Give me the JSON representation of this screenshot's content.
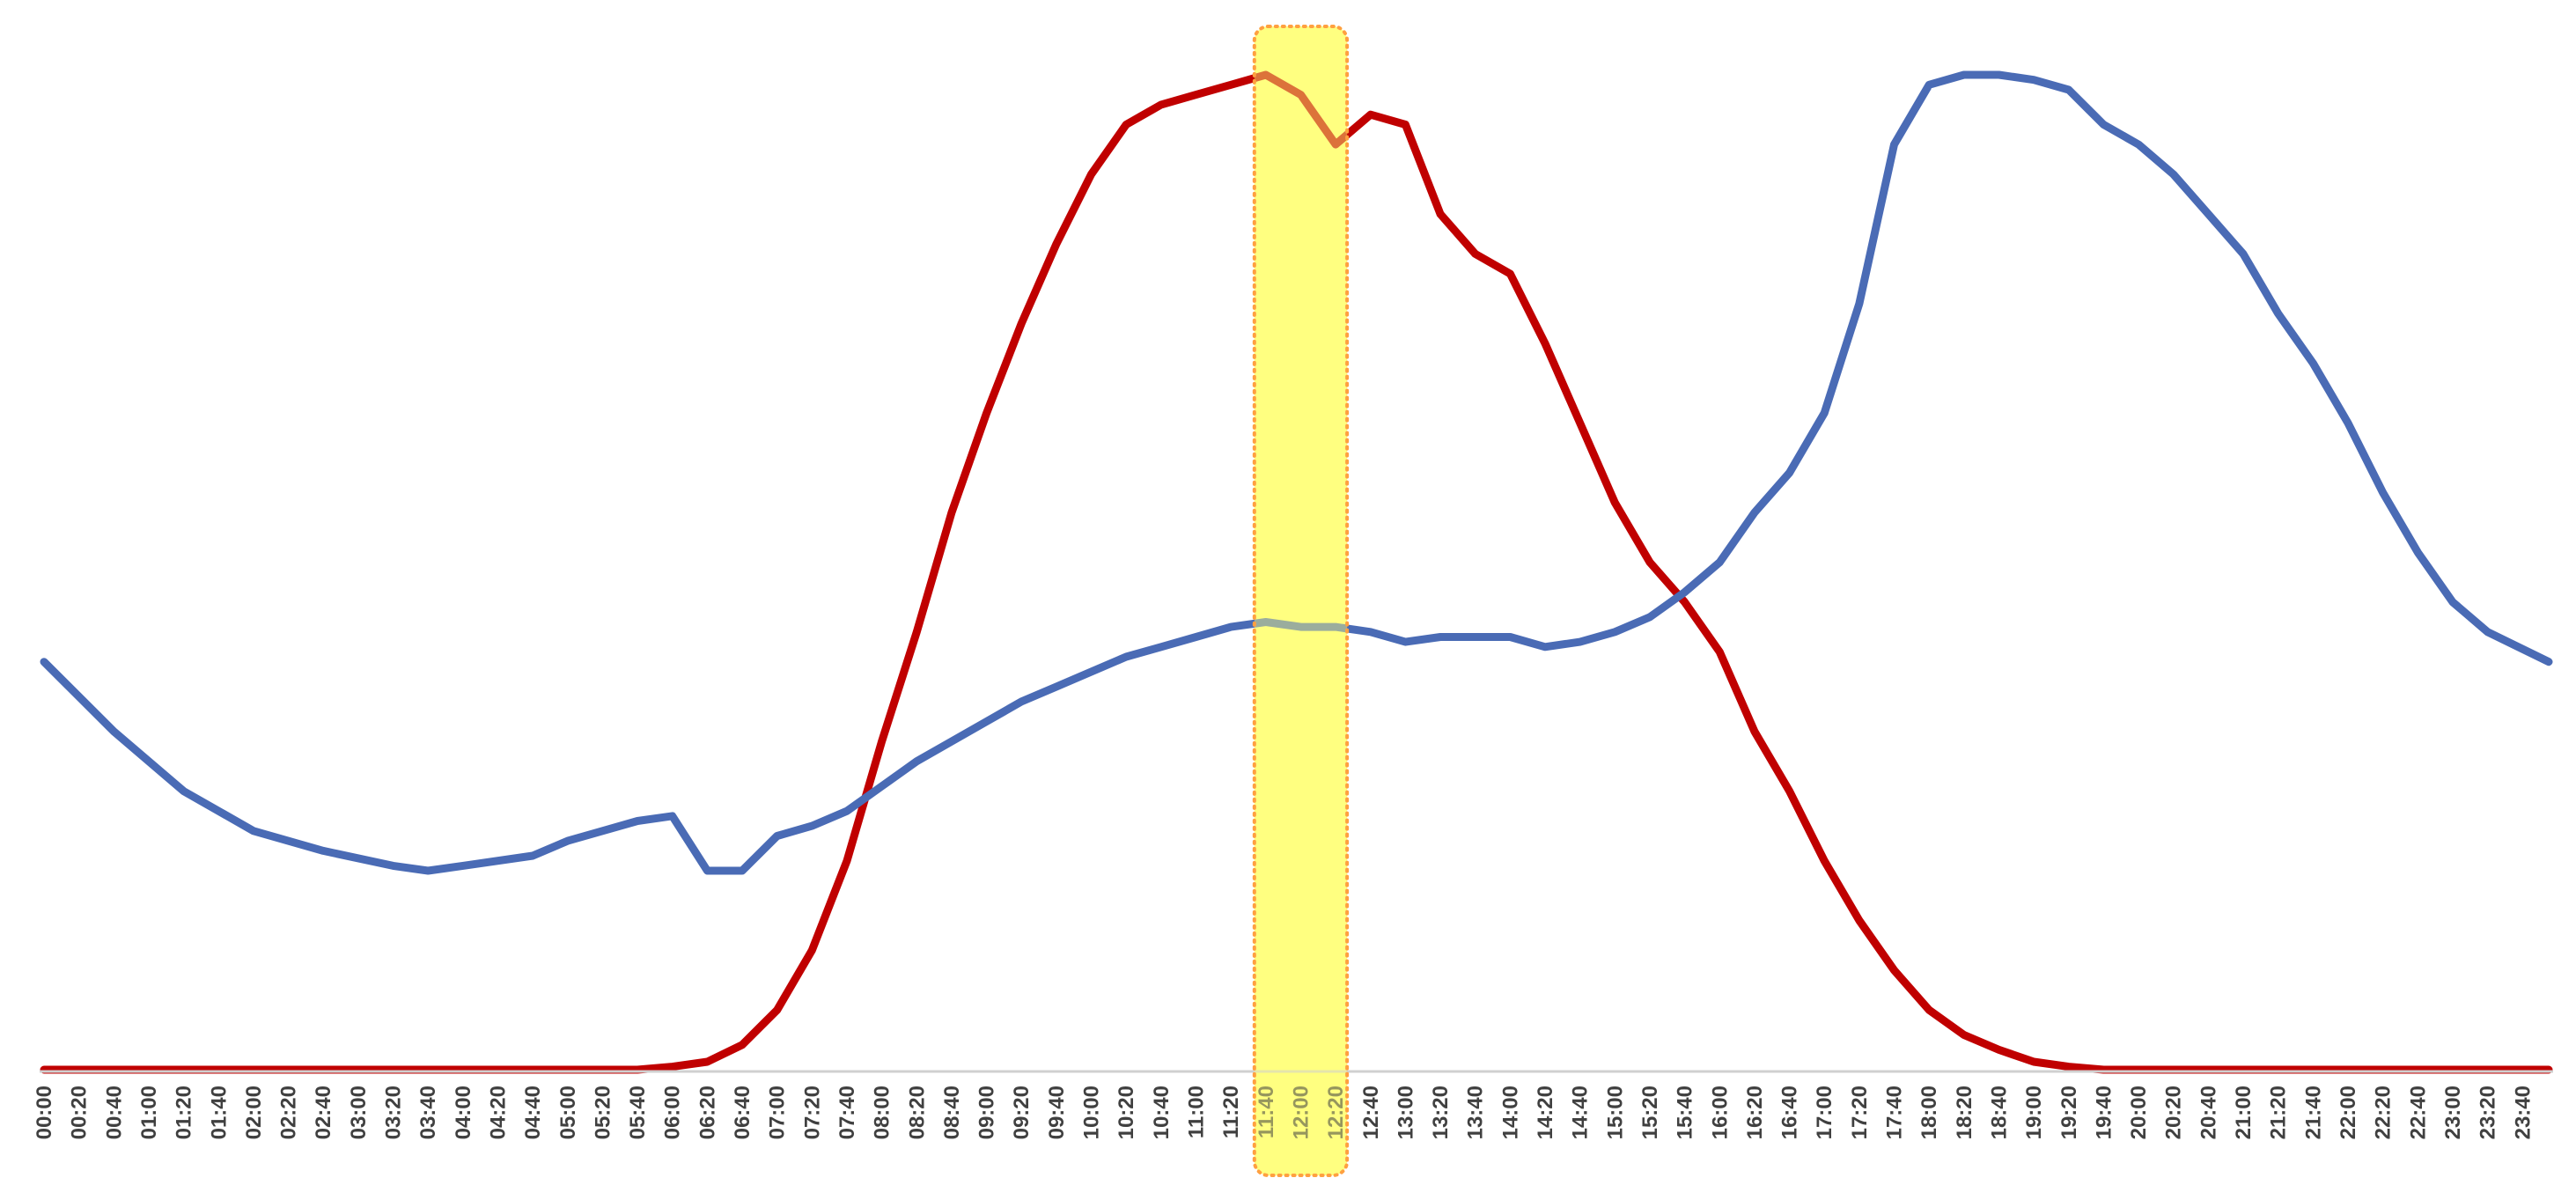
{
  "chart_data": {
    "type": "line",
    "title": "",
    "xlabel": "",
    "ylabel": "",
    "x_tick_labels": [
      "00:00",
      "00:20",
      "00:40",
      "01:00",
      "01:20",
      "01:40",
      "02:00",
      "02:20",
      "02:40",
      "03:00",
      "03:20",
      "03:40",
      "04:00",
      "04:20",
      "04:40",
      "05:00",
      "05:20",
      "05:40",
      "06:00",
      "06:20",
      "06:40",
      "07:00",
      "07:20",
      "07:40",
      "08:00",
      "08:20",
      "08:40",
      "09:00",
      "09:20",
      "09:40",
      "10:00",
      "10:20",
      "10:40",
      "11:00",
      "11:20",
      "11:40",
      "12:00",
      "12:20",
      "12:40",
      "13:00",
      "13:20",
      "13:40",
      "14:00",
      "14:20",
      "14:40",
      "15:00",
      "15:20",
      "15:40",
      "16:00",
      "16:20",
      "16:40",
      "17:00",
      "17:20",
      "17:40",
      "18:00",
      "18:20",
      "18:40",
      "19:00",
      "19:20",
      "19:40",
      "20:00",
      "20:20",
      "20:40",
      "21:00",
      "21:20",
      "21:40",
      "22:00",
      "22:20",
      "22:40",
      "23:00",
      "23:20",
      "23:40"
    ],
    "ylim": [
      0,
      100
    ],
    "y_axis_visible": false,
    "grid": false,
    "series": [
      {
        "color": "#c00000",
        "x": [
          "00:00",
          "02:00",
          "04:00",
          "05:40",
          "06:00",
          "06:20",
          "06:40",
          "07:00",
          "07:20",
          "07:40",
          "08:00",
          "08:20",
          "08:40",
          "09:00",
          "09:20",
          "09:40",
          "10:00",
          "10:20",
          "10:40",
          "11:00",
          "11:20",
          "11:40",
          "12:00",
          "12:20",
          "12:40",
          "13:00",
          "13:20",
          "13:40",
          "14:00",
          "14:20",
          "14:40",
          "15:00",
          "15:20",
          "15:40",
          "16:00",
          "16:20",
          "16:40",
          "17:00",
          "17:20",
          "17:40",
          "18:00",
          "18:20",
          "18:40",
          "19:00",
          "19:20",
          "19:40",
          "20:00",
          "22:00",
          "23:55"
        ],
        "values": [
          0,
          0,
          0,
          0,
          0.3,
          0.8,
          2.5,
          6,
          12,
          21,
          33,
          44,
          56,
          66,
          75,
          83,
          90,
          95,
          97,
          98,
          99,
          100,
          98,
          93,
          96,
          95,
          86,
          82,
          80,
          73,
          65,
          57,
          51,
          47,
          42,
          34,
          28,
          21,
          15,
          10,
          6,
          3.5,
          2,
          0.8,
          0.3,
          0,
          0,
          0,
          0
        ]
      },
      {
        "color": "#4a6bb5",
        "x": [
          "00:00",
          "00:40",
          "01:20",
          "02:00",
          "02:40",
          "03:20",
          "03:40",
          "04:00",
          "04:40",
          "05:00",
          "05:20",
          "05:40",
          "06:00",
          "06:20",
          "06:40",
          "07:00",
          "07:20",
          "07:40",
          "08:00",
          "08:20",
          "08:40",
          "09:00",
          "09:20",
          "09:40",
          "10:00",
          "10:20",
          "10:40",
          "11:00",
          "11:20",
          "11:40",
          "12:00",
          "12:20",
          "12:40",
          "13:00",
          "13:20",
          "13:40",
          "14:00",
          "14:20",
          "14:40",
          "15:00",
          "15:20",
          "15:40",
          "16:00",
          "16:20",
          "16:40",
          "17:00",
          "17:20",
          "17:40",
          "18:00",
          "18:20",
          "18:40",
          "19:00",
          "19:20",
          "19:40",
          "20:00",
          "20:20",
          "20:40",
          "21:00",
          "21:20",
          "21:40",
          "22:00",
          "22:20",
          "22:40",
          "23:00",
          "23:20",
          "23:55"
        ],
        "values": [
          41,
          34,
          28,
          24,
          22,
          20.5,
          20,
          20.5,
          21.5,
          23,
          24,
          25,
          25.5,
          20,
          20,
          23.5,
          24.5,
          26,
          28.5,
          31,
          33,
          35,
          37,
          38.5,
          40,
          41.5,
          42.5,
          43.5,
          44.5,
          45,
          44.5,
          44.5,
          44,
          43,
          43.5,
          43.5,
          43.5,
          42.5,
          43,
          44,
          45.5,
          48,
          51,
          56,
          60,
          66,
          77,
          93,
          99,
          100,
          100,
          99.5,
          98.5,
          95,
          93,
          90,
          86,
          82,
          76,
          71,
          65,
          58,
          52,
          47,
          44,
          41
        ]
      }
    ],
    "highlight": {
      "from": "11:40",
      "to": "12:20",
      "fill": "#ffff80",
      "border": "#ffa040"
    }
  }
}
